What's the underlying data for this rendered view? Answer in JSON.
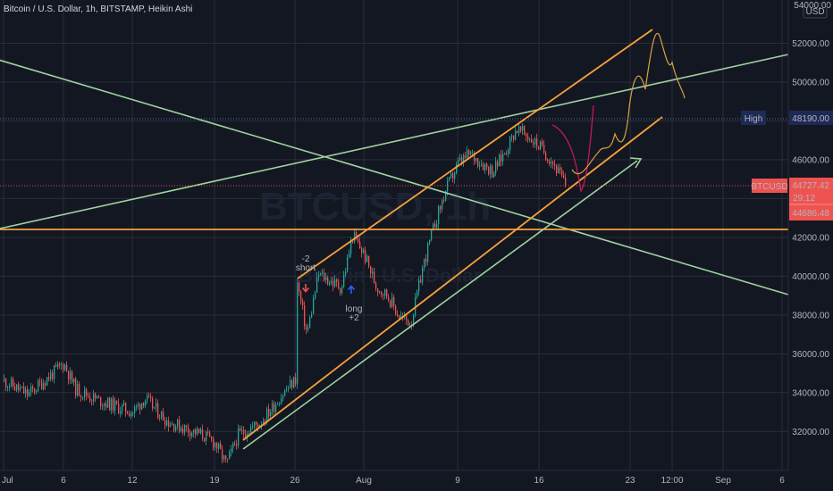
{
  "header": {
    "symbol_line": "Bitcoin / U.S. Dollar, 1h, BITSTAMP, Heikin Ashi",
    "currency": "USD",
    "axis_top_label": "54000.00"
  },
  "watermark": {
    "ticker": "BTCUSD, 1h",
    "name": "Bitcoin / U.S. Dollar"
  },
  "price_badges": {
    "high_label": "High",
    "high_value": "48190.00",
    "symbol_tag": "BTCUSD",
    "last_price": "44727.42",
    "countdown": "29:12",
    "ha_close": "44686.48"
  },
  "annotations": {
    "short_count": "-2",
    "short_label": "short",
    "long_label": "long",
    "long_count": "+2"
  },
  "colors": {
    "background": "#131722",
    "grid": "#2a2e39",
    "up_candle": "#26a69a",
    "down_candle": "#ef5350",
    "channel_orange": "#f7a23a",
    "trendline_green": "#9ed3a0",
    "forecast_orange": "#d9a441",
    "forecast_red": "#c2185b",
    "high_line": "#5b6db0",
    "last_price_badge": "#ef5350",
    "high_badge": "#1e2a55"
  },
  "chart_data": {
    "type": "candlestick",
    "title": "Bitcoin / U.S. Dollar, 1h, BITSTAMP, Heikin Ashi",
    "y_unit": "USD",
    "ylim": [
      30200,
      54100
    ],
    "y_ticks": [
      "32000.00",
      "34000.00",
      "36000.00",
      "38000.00",
      "40000.00",
      "42000.00",
      "44000.00",
      "46000.00",
      "48000.00",
      "50000.00",
      "52000.00"
    ],
    "x_ticks": [
      "Jul",
      "6",
      "12",
      "19",
      "26",
      "Aug",
      "9",
      "16",
      "23",
      "12:00",
      "Sep",
      "6"
    ],
    "grid": true,
    "price_path": [
      [
        "Jul 1",
        34600
      ],
      [
        "Jul 3",
        33900
      ],
      [
        "Jul 6",
        35500
      ],
      [
        "Jul 7",
        34200
      ],
      [
        "Jul 9",
        33600
      ],
      [
        "Jul 12",
        33000
      ],
      [
        "Jul 13",
        33700
      ],
      [
        "Jul 15",
        32500
      ],
      [
        "Jul 18",
        31800
      ],
      [
        "Jul 19",
        31400
      ],
      [
        "Jul 20",
        30300
      ],
      [
        "Jul 21",
        31800
      ],
      [
        "Jul 23",
        32500
      ],
      [
        "Jul 25",
        34000
      ],
      [
        "Jul 26",
        34700
      ],
      [
        "Jul 26",
        39800
      ],
      [
        "Jul 27",
        37000
      ],
      [
        "Jul 28",
        40100
      ],
      [
        "Jul 30",
        39400
      ],
      [
        "Jul 31",
        42100
      ],
      [
        "Aug 1",
        41100
      ],
      [
        "Aug 2",
        39500
      ],
      [
        "Aug 3",
        39000
      ],
      [
        "Aug 4",
        37900
      ],
      [
        "Aug 5",
        37600
      ],
      [
        "Aug 6",
        40500
      ],
      [
        "Aug 7",
        42700
      ],
      [
        "Aug 8",
        44500
      ],
      [
        "Aug 9",
        45800
      ],
      [
        "Aug 10",
        46300
      ],
      [
        "Aug 12",
        45400
      ],
      [
        "Aug 13",
        46400
      ],
      [
        "Aug 14",
        47600
      ],
      [
        "Aug 15",
        47200
      ],
      [
        "Aug 16",
        46700
      ],
      [
        "Aug 17",
        45900
      ],
      [
        "Aug 18",
        44700
      ]
    ],
    "horizontal_levels": {
      "support": 42400,
      "high": 48190,
      "last": 44727.42
    },
    "markers": [
      {
        "label": "short",
        "count": "-2",
        "at": [
          "Jul 26",
          40200
        ]
      },
      {
        "label": "long",
        "count": "+2",
        "at": [
          "Aug 1",
          39300
        ]
      }
    ]
  }
}
